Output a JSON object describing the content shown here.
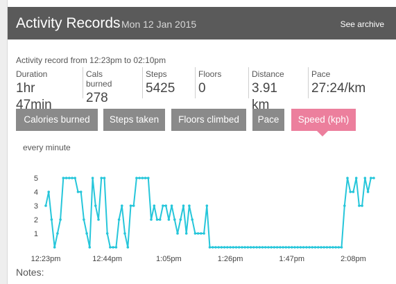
{
  "header": {
    "title": "Activity Records",
    "date": "Mon 12 Jan 2015",
    "archive_link": "See archive"
  },
  "record_range": "Activity record from 12:23pm to 02:10pm",
  "stats": [
    {
      "label": "Duration",
      "value": "1hr 47min"
    },
    {
      "label": "Cals burned",
      "value": "278"
    },
    {
      "label": "Steps",
      "value": "5425"
    },
    {
      "label": "Floors",
      "value": "0"
    },
    {
      "label": "Distance",
      "value": "3.91 km"
    },
    {
      "label": "Pace",
      "value": "27:24/km"
    }
  ],
  "tabs": [
    {
      "label": "Calories burned",
      "active": false
    },
    {
      "label": "Steps taken",
      "active": false
    },
    {
      "label": "Floors climbed",
      "active": false
    },
    {
      "label": "Pace",
      "active": false
    },
    {
      "label": "Speed (kph)",
      "active": true
    }
  ],
  "interval_label": "every minute",
  "notes_label": "Notes:",
  "colors": {
    "header_bg": "#5a5a5a",
    "tab_bg": "#8a8a8a",
    "tab_active": "#ec7f9d",
    "line": "#26c6da"
  },
  "chart_data": {
    "type": "line",
    "x_start_minute": 0,
    "x_tick_labels": [
      "12:23pm",
      "12:44pm",
      "1:05pm",
      "1:26pm",
      "1:47pm",
      "2:08pm"
    ],
    "y_tick_labels": [
      "1",
      "2",
      "3",
      "4",
      "5"
    ],
    "ylim": [
      0,
      5
    ],
    "grid": false,
    "series": [
      {
        "values": [
          3,
          4,
          2,
          0,
          1,
          2,
          5,
          5,
          5,
          5,
          5,
          4,
          4,
          2,
          1,
          0,
          5,
          3,
          2,
          5,
          5,
          1,
          0,
          0,
          0,
          2,
          3,
          1,
          0,
          3,
          3,
          5,
          5,
          5,
          5,
          5,
          2,
          3,
          2,
          2,
          3,
          3,
          2,
          3,
          2,
          1,
          2,
          3,
          1,
          3,
          2,
          1,
          1,
          1,
          1,
          3,
          0,
          0,
          0,
          0,
          0,
          0,
          0,
          0,
          0,
          0,
          0,
          0,
          0,
          0,
          0,
          0,
          0,
          0,
          0,
          0,
          0,
          0,
          0,
          0,
          0,
          0,
          0,
          0,
          0,
          0,
          0,
          0,
          0,
          0,
          0,
          0,
          0,
          0,
          0,
          0,
          0,
          0,
          0,
          0,
          0,
          0,
          3,
          5,
          4,
          4,
          5,
          3,
          3,
          5,
          4,
          5,
          5
        ]
      }
    ]
  }
}
